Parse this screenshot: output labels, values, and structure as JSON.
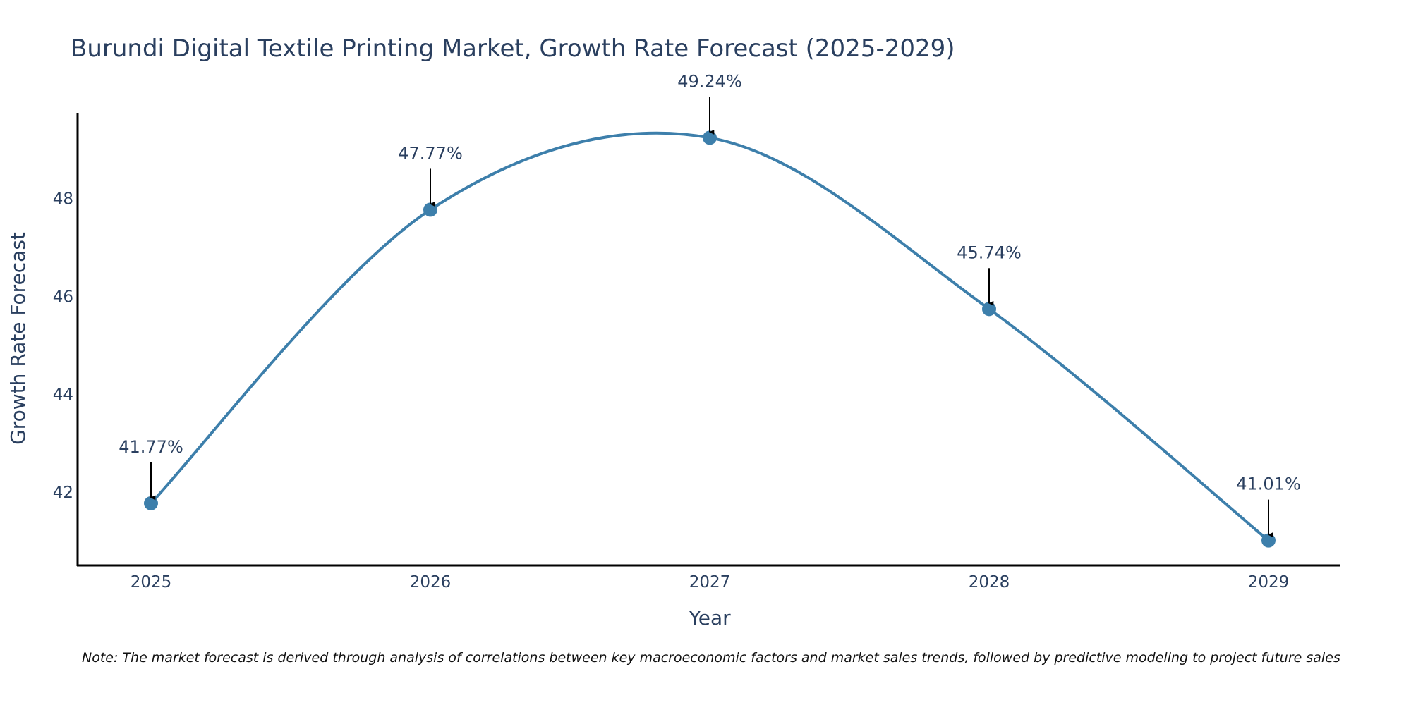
{
  "chart_data": {
    "type": "line",
    "title": "Burundi Digital Textile Printing Market, Growth Rate Forecast (2025-2029)",
    "xlabel": "Year",
    "ylabel": "Growth Rate Forecast",
    "categories": [
      "2025",
      "2026",
      "2027",
      "2028",
      "2029"
    ],
    "series": [
      {
        "values": [
          41.77,
          47.77,
          49.24,
          45.74,
          41.01
        ],
        "data_labels": [
          "41.77%",
          "47.77%",
          "49.24%",
          "45.74%",
          "41.01%"
        ],
        "color": "#3d7fab",
        "line_shape": "spline",
        "markers": true
      }
    ],
    "ylim": [
      40.5,
      49.75
    ],
    "yticks": [
      42,
      44,
      46,
      48
    ],
    "ytick_labels": [
      "42",
      "44",
      "46",
      "48"
    ],
    "grid": false,
    "annotation_arrows": true,
    "note": "Note: The market forecast is derived through analysis of correlations between key macroeconomic factors and market sales trends, followed by predictive modeling to project future sales"
  }
}
